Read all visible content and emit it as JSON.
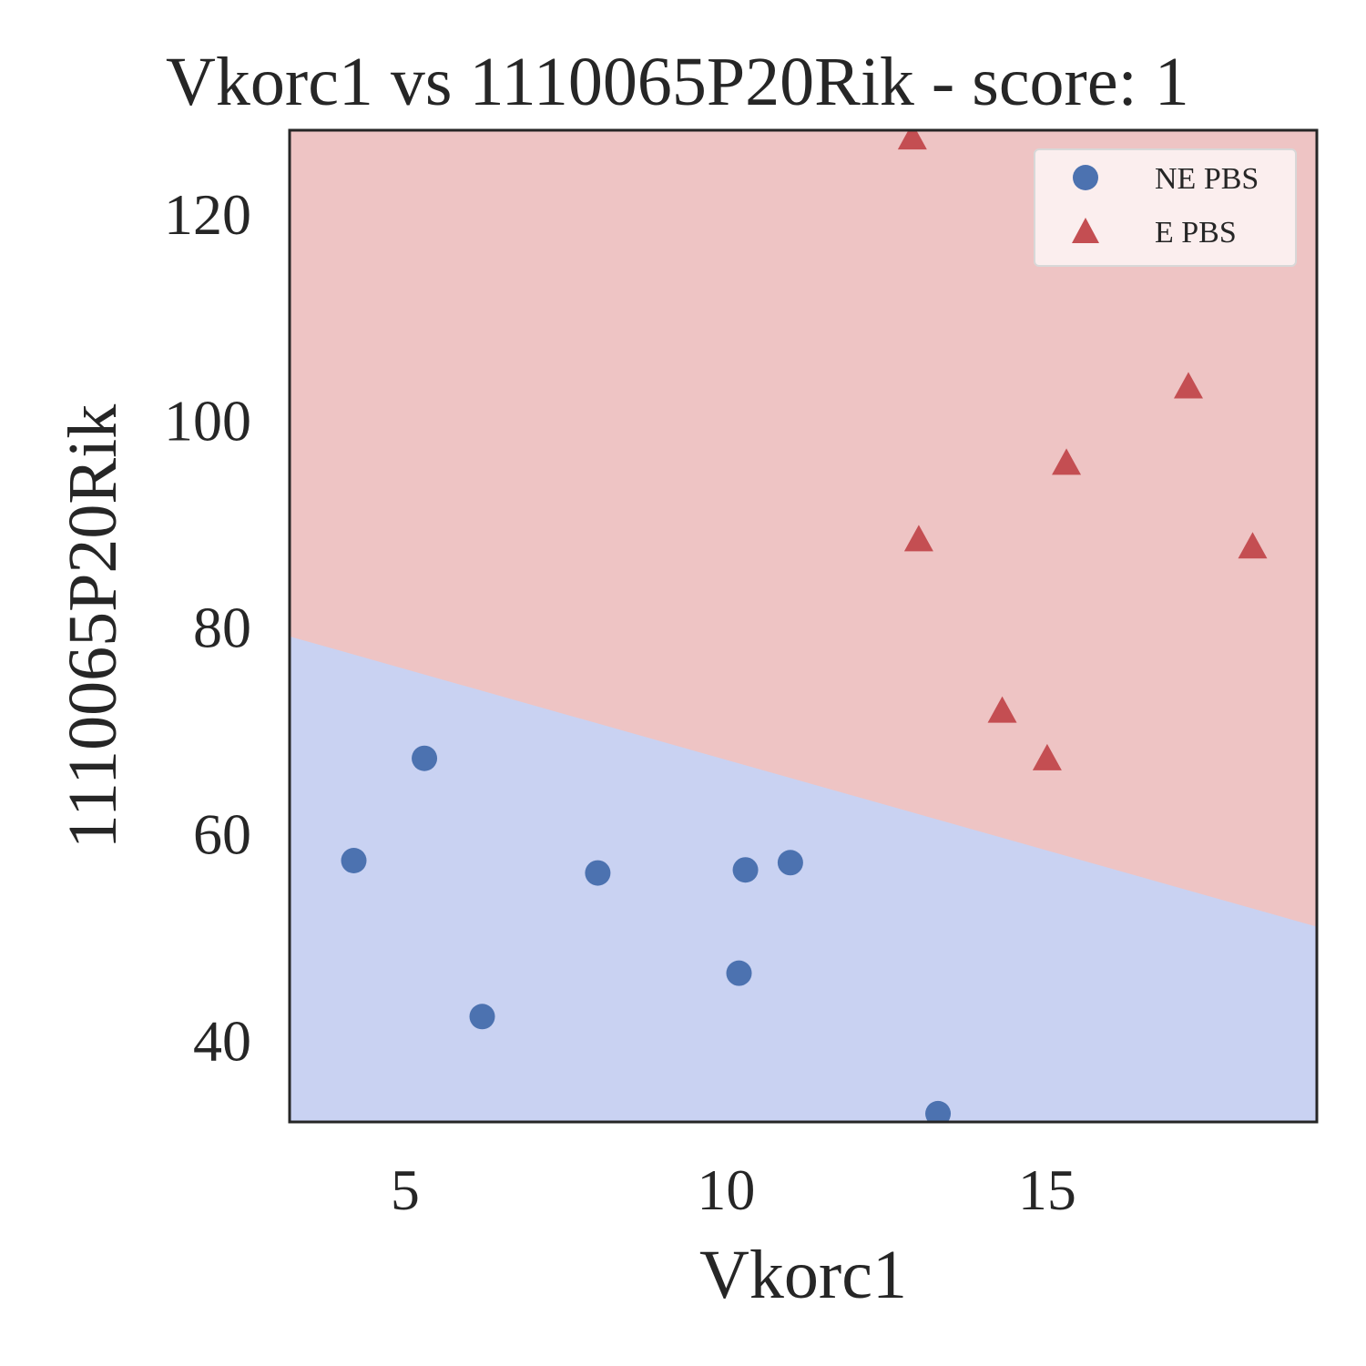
{
  "chart_data": {
    "type": "scatter",
    "title": "Vkorc1 vs 1110065P20Rik - score: 1",
    "xlabel": "Vkorc1",
    "ylabel": "1110065P20Rik",
    "xlim": [
      3.2,
      19.2
    ],
    "ylim": [
      32,
      128
    ],
    "xticks": [
      5,
      10,
      15
    ],
    "yticks": [
      40,
      60,
      80,
      100,
      120
    ],
    "grid": false,
    "legend_position": "top-right",
    "decision_boundary": {
      "x": [
        3.2,
        19.2
      ],
      "y": [
        79.0,
        50.9
      ]
    },
    "regions": [
      {
        "name": "above-boundary",
        "color": "#eec4c4"
      },
      {
        "name": "below-boundary",
        "color": "#c9d2f2"
      }
    ],
    "series": [
      {
        "name": "NE PBS",
        "marker": "circle",
        "color": "#4c72b0",
        "points": [
          [
            4.2,
            57.3
          ],
          [
            5.3,
            67.2
          ],
          [
            6.2,
            42.2
          ],
          [
            8.0,
            56.1
          ],
          [
            10.2,
            46.4
          ],
          [
            10.3,
            56.4
          ],
          [
            11.0,
            57.1
          ],
          [
            13.3,
            32.8
          ]
        ]
      },
      {
        "name": "E PBS",
        "marker": "triangle",
        "color": "#c44e52",
        "points": [
          [
            12.9,
            127.2
          ],
          [
            13.0,
            88.3
          ],
          [
            14.3,
            71.7
          ],
          [
            15.0,
            67.1
          ],
          [
            15.3,
            95.7
          ],
          [
            17.2,
            103.1
          ],
          [
            18.2,
            87.6
          ]
        ]
      }
    ]
  }
}
